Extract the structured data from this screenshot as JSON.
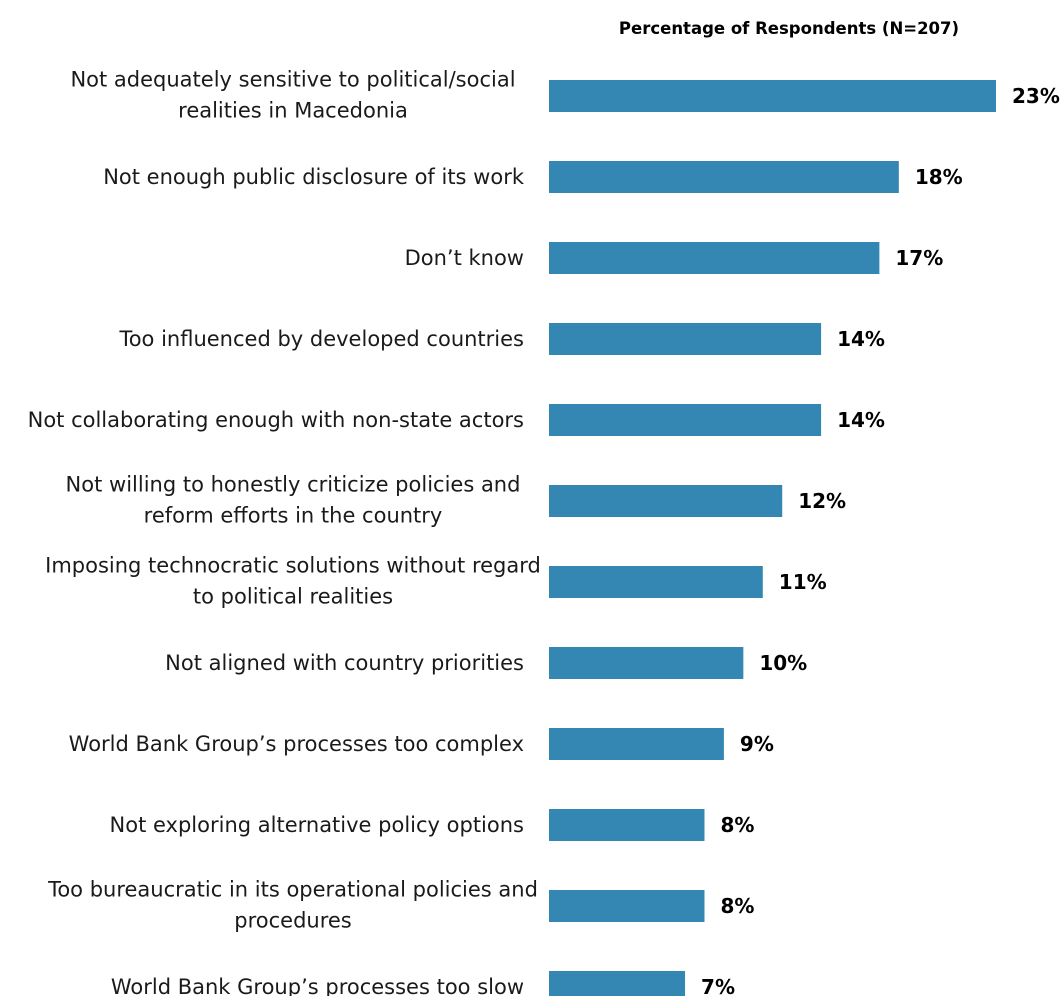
{
  "chart_data": {
    "type": "bar",
    "orientation": "horizontal",
    "title": "Percentage of Respondents (N=207)",
    "categories": [
      [
        "Not adequately sensitive to political/social",
        "realities in Macedonia"
      ],
      [
        "Not enough public disclosure of its work"
      ],
      [
        "Don’t know"
      ],
      [
        "Too influenced by developed countries"
      ],
      [
        "Not collaborating enough with non-state actors"
      ],
      [
        "Not willing to honestly criticize policies and",
        "reform efforts in the country"
      ],
      [
        "Imposing technocratic solutions without regard",
        "to political realities"
      ],
      [
        "Not aligned with country priorities"
      ],
      [
        "World Bank Group’s processes too complex"
      ],
      [
        "Not exploring alternative policy options"
      ],
      [
        "Too bureaucratic in its operational policies and",
        "procedures"
      ],
      [
        "World Bank Group’s processes too slow"
      ]
    ],
    "values": [
      23,
      18,
      17,
      14,
      14,
      12,
      11,
      10,
      9,
      8,
      8,
      7
    ],
    "value_labels": [
      "23%",
      "18%",
      "17%",
      "14%",
      "14%",
      "12%",
      "11%",
      "10%",
      "9%",
      "8%",
      "8%",
      "7%"
    ],
    "unit": "%",
    "bar_color": "#3487b2",
    "grid": false,
    "legend": "none",
    "xlim": [
      0,
      23
    ]
  }
}
